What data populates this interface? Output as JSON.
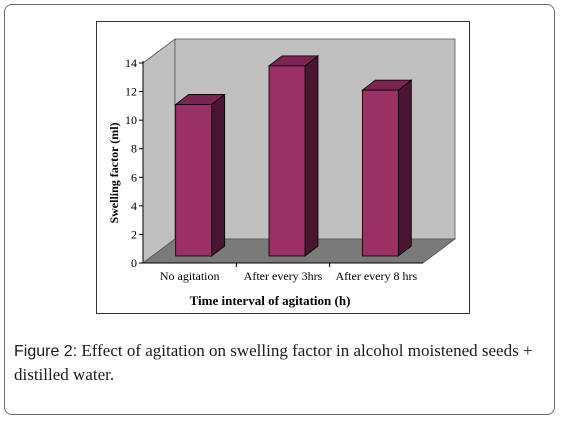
{
  "chart_data": {
    "type": "bar",
    "categories": [
      "No agitation",
      "After every 3hrs",
      "After every 8 hrs"
    ],
    "series": [
      {
        "values": [
          11.1,
          13.8,
          12.1
        ]
      }
    ],
    "xlabel": "Time interval of agitation (h)",
    "ylabel": "Swelling factor (ml)",
    "ylim": [
      0,
      14
    ],
    "yticks": [
      0,
      2,
      4,
      6,
      8,
      10,
      12,
      14
    ],
    "grid": false,
    "style": "3d-bar",
    "colors": {
      "bar_front": "#9b3065",
      "bar_side": "#4a1530",
      "bar_top": "#7a2450",
      "wall": "#c0c0c0",
      "floor": "#7a7a7a"
    }
  },
  "caption": {
    "label": "Figure 2:",
    "text": " Effect of agitation on swelling factor in alcohol moistened seeds + distilled water."
  }
}
